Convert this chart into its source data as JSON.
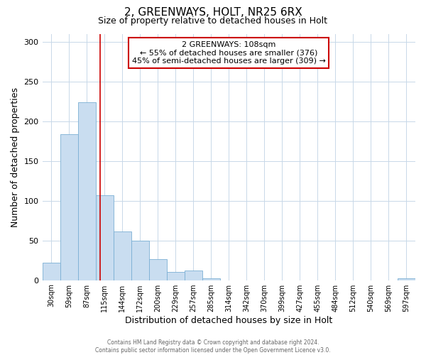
{
  "title": "2, GREENWAYS, HOLT, NR25 6RX",
  "subtitle": "Size of property relative to detached houses in Holt",
  "xlabel": "Distribution of detached houses by size in Holt",
  "ylabel": "Number of detached properties",
  "bar_labels": [
    "30sqm",
    "59sqm",
    "87sqm",
    "115sqm",
    "144sqm",
    "172sqm",
    "200sqm",
    "229sqm",
    "257sqm",
    "285sqm",
    "314sqm",
    "342sqm",
    "370sqm",
    "399sqm",
    "427sqm",
    "455sqm",
    "484sqm",
    "512sqm",
    "540sqm",
    "569sqm",
    "597sqm"
  ],
  "bar_values": [
    22,
    184,
    224,
    107,
    61,
    50,
    26,
    10,
    12,
    2,
    0,
    0,
    0,
    0,
    0,
    0,
    0,
    0,
    0,
    0,
    2
  ],
  "bar_color": "#c9ddf0",
  "bar_edge_color": "#7bafd4",
  "ylim": [
    0,
    310
  ],
  "yticks": [
    0,
    50,
    100,
    150,
    200,
    250,
    300
  ],
  "vline_color": "#cc0000",
  "annotation_title": "2 GREENWAYS: 108sqm",
  "annotation_line1": "← 55% of detached houses are smaller (376)",
  "annotation_line2": "45% of semi-detached houses are larger (309) →",
  "annotation_box_color": "#cc0000",
  "footer1": "Contains HM Land Registry data © Crown copyright and database right 2024.",
  "footer2": "Contains public sector information licensed under the Open Government Licence v3.0.",
  "background_color": "#ffffff",
  "grid_color": "#c8d8e8",
  "title_fontsize": 11,
  "subtitle_fontsize": 9,
  "axis_label_fontsize": 9,
  "annotation_fontsize": 8,
  "tick_fontsize": 7,
  "footer_fontsize": 5.5
}
